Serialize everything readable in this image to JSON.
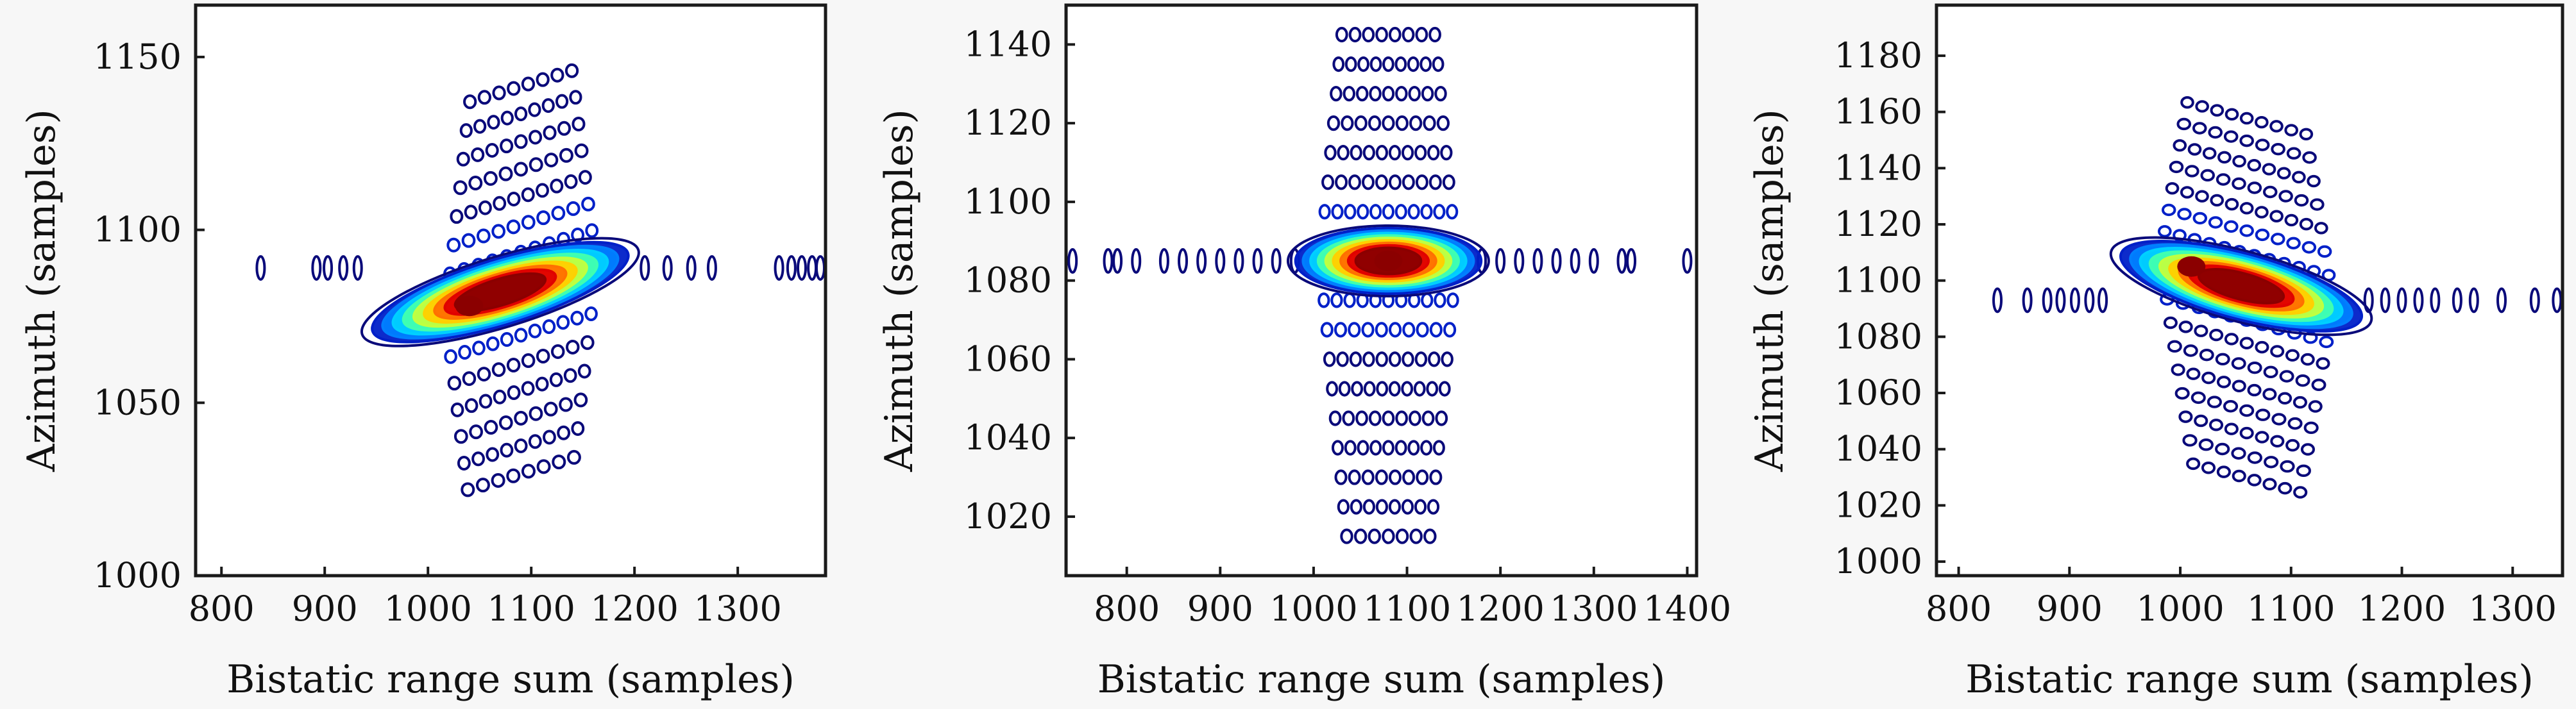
{
  "figure": {
    "background": "#f7f7f7",
    "plot_background": "#ffffff",
    "frame_color": "#1a1a1a",
    "contour_colormap": [
      "#0a0a7a",
      "#0020c8",
      "#0080ff",
      "#00d0ff",
      "#40ffb0",
      "#c0ff40",
      "#ffd000",
      "#ff7000",
      "#e00000",
      "#8b0000"
    ]
  },
  "chart_data": [
    {
      "type": "contour",
      "title": "",
      "xlabel": "Bistatic range sum (samples)",
      "ylabel": "Azimuth (samples)",
      "xlim": [
        775,
        1385
      ],
      "ylim": [
        1000,
        1165
      ],
      "xticks": [
        800,
        900,
        1000,
        1100,
        1200,
        1300
      ],
      "yticks": [
        1000,
        1050,
        1100,
        1150
      ],
      "peak": {
        "x": 1040,
        "y": 1078
      },
      "main_lobe": {
        "x_start": 960,
        "y_start": 1072,
        "x_end": 1180,
        "y_end": 1092
      },
      "sidelobe_stripes": {
        "spacing": 8,
        "x_center": 1090,
        "x_half_width": 80,
        "y_min": 1025,
        "y_max": 1143
      },
      "horizontal_sidelobe_x": [
        838,
        892,
        903,
        918,
        932,
        1210,
        1232,
        1255,
        1275,
        1340,
        1352,
        1362,
        1372,
        1380
      ],
      "horizontal_sidelobe_y": 1089,
      "grid": false,
      "legend": "none"
    },
    {
      "type": "contour",
      "title": "",
      "xlabel": "Bistatic range sum (samples)",
      "ylabel": "Azimuth (samples)",
      "xlim": [
        735,
        1410
      ],
      "ylim": [
        1005,
        1150
      ],
      "xticks": [
        800,
        900,
        1000,
        1100,
        1200,
        1300,
        1400
      ],
      "yticks": [
        1020,
        1040,
        1060,
        1080,
        1100,
        1120,
        1140
      ],
      "peak": {
        "x": 1080,
        "y": 1085
      },
      "main_lobe": {
        "x_start": 1000,
        "y_start": 1085,
        "x_end": 1160,
        "y_end": 1085
      },
      "sidelobe_stripes": {
        "spacing": 7.5,
        "x_center": 1080,
        "x_half_width": 80,
        "y_min": 1015,
        "y_max": 1145
      },
      "horizontal_sidelobe_x": [
        742,
        780,
        790,
        810,
        840,
        860,
        880,
        900,
        920,
        940,
        960,
        980,
        1180,
        1200,
        1220,
        1240,
        1260,
        1280,
        1300,
        1330,
        1340,
        1400
      ],
      "horizontal_sidelobe_y": 1085,
      "grid": false,
      "legend": "none"
    },
    {
      "type": "contour",
      "title": "",
      "xlabel": "Bistatic range sum (samples)",
      "ylabel": "Azimuth (samples)",
      "xlim": [
        780,
        1345
      ],
      "ylim": [
        995,
        1198
      ],
      "xticks": [
        800,
        900,
        1000,
        1100,
        1200,
        1300
      ],
      "yticks": [
        1000,
        1020,
        1040,
        1060,
        1080,
        1100,
        1120,
        1140,
        1160,
        1180
      ],
      "peak": {
        "x": 1010,
        "y": 1105
      },
      "main_lobe": {
        "x_start": 960,
        "y_start": 1108,
        "x_end": 1150,
        "y_end": 1088
      },
      "sidelobe_stripes": {
        "spacing": 8,
        "x_center": 1060,
        "x_half_width": 85,
        "y_min": 1035,
        "y_max": 1170
      },
      "horizontal_sidelobe_x": [
        835,
        862,
        880,
        892,
        905,
        918,
        930,
        1170,
        1185,
        1200,
        1215,
        1230,
        1250,
        1265,
        1290,
        1320,
        1340
      ],
      "horizontal_sidelobe_y": 1093,
      "grid": false,
      "legend": "none"
    }
  ]
}
